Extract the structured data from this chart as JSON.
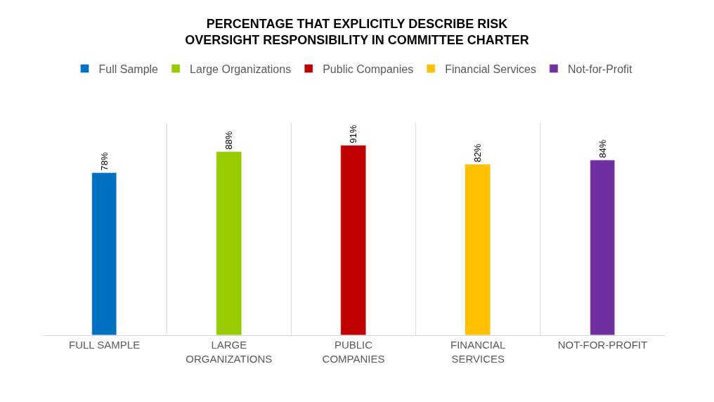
{
  "chart_data": {
    "type": "bar",
    "title": "PERCENTAGE THAT EXPLICITLY DESCRIBE RISK OVERSIGHT RESPONSIBILITY IN COMMITTEE CHARTER",
    "categories": [
      "FULL SAMPLE",
      "LARGE ORGANIZATIONS",
      "PUBLIC COMPANIES",
      "FINANCIAL SERVICES",
      "NOT-FOR-PROFIT"
    ],
    "series": [
      {
        "name": "Full Sample",
        "color": "#0070c0",
        "values": [
          78,
          null,
          null,
          null,
          null
        ],
        "value_labels": [
          "78%",
          null,
          null,
          null,
          null
        ]
      },
      {
        "name": "Large Organizations",
        "color": "#99cc00",
        "values": [
          null,
          88,
          null,
          null,
          null
        ],
        "value_labels": [
          null,
          "88%",
          null,
          null,
          null
        ]
      },
      {
        "name": "Public Companies",
        "color": "#c00000",
        "values": [
          null,
          null,
          91,
          null,
          null
        ],
        "value_labels": [
          null,
          null,
          "91%",
          null,
          null
        ]
      },
      {
        "name": "Financial Services",
        "color": "#ffc000",
        "values": [
          null,
          null,
          null,
          82,
          null
        ],
        "value_labels": [
          null,
          null,
          null,
          "82%",
          null
        ]
      },
      {
        "name": "Not-for-Profit",
        "color": "#7030a0",
        "values": [
          null,
          null,
          null,
          null,
          84
        ],
        "value_labels": [
          null,
          null,
          null,
          null,
          "84%"
        ]
      }
    ],
    "grid": "x",
    "legend": "top",
    "tick_labels": "x"
  }
}
